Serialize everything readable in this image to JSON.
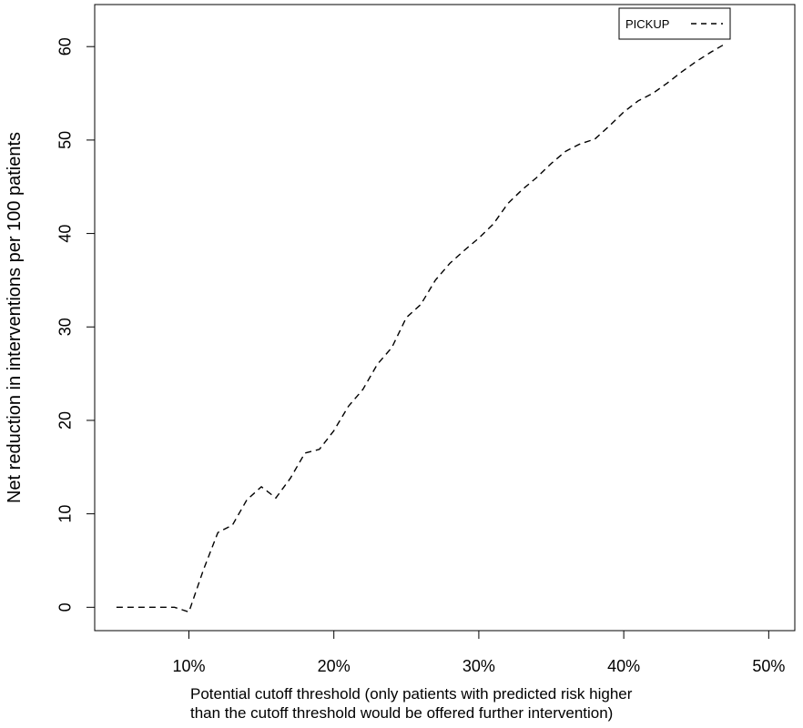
{
  "chart_data": {
    "type": "line",
    "xlabel_lines": [
      "Potential cutoff threshold (only patients with predicted risk higher",
      "than the cutoff threshold would be offered further intervention)"
    ],
    "ylabel": "Net reduction in interventions per 100 patients",
    "xlim": [
      0.035,
      0.518
    ],
    "ylim": [
      -2.5,
      64.5
    ],
    "x_ticks": [
      0.1,
      0.2,
      0.3,
      0.4,
      0.5
    ],
    "x_tick_labels": [
      "10%",
      "20%",
      "30%",
      "40%",
      "50%"
    ],
    "y_ticks": [
      0,
      10,
      20,
      30,
      40,
      50,
      60
    ],
    "y_tick_labels": [
      "0",
      "10",
      "20",
      "30",
      "40",
      "50",
      "60"
    ],
    "grid": false,
    "legend": {
      "position": "top-right",
      "entries": [
        {
          "label": "PICKUP",
          "line_style": "dashed"
        }
      ]
    },
    "series": [
      {
        "name": "PICKUP",
        "line_style": "dashed",
        "color": "#000000",
        "x": [
          0.05,
          0.06,
          0.07,
          0.08,
          0.09,
          0.1,
          0.11,
          0.12,
          0.13,
          0.14,
          0.15,
          0.16,
          0.17,
          0.18,
          0.19,
          0.2,
          0.21,
          0.22,
          0.23,
          0.24,
          0.25,
          0.26,
          0.27,
          0.28,
          0.29,
          0.3,
          0.31,
          0.32,
          0.33,
          0.34,
          0.35,
          0.36,
          0.37,
          0.38,
          0.39,
          0.4,
          0.41,
          0.42,
          0.43,
          0.44,
          0.45,
          0.46,
          0.47
        ],
        "y": [
          0,
          0,
          0,
          0,
          0,
          -0.5,
          4,
          8,
          8.8,
          11.5,
          12.9,
          11.7,
          13.8,
          16.5,
          16.9,
          18.9,
          21.5,
          23.3,
          26,
          27.8,
          31,
          32.4,
          35,
          36.8,
          38.2,
          39.5,
          41,
          43.2,
          44.7,
          46,
          47.5,
          48.8,
          49.6,
          50.1,
          51.5,
          53,
          54.2,
          55,
          56.1,
          57.3,
          58.4,
          59.4,
          60.3
        ]
      }
    ]
  }
}
